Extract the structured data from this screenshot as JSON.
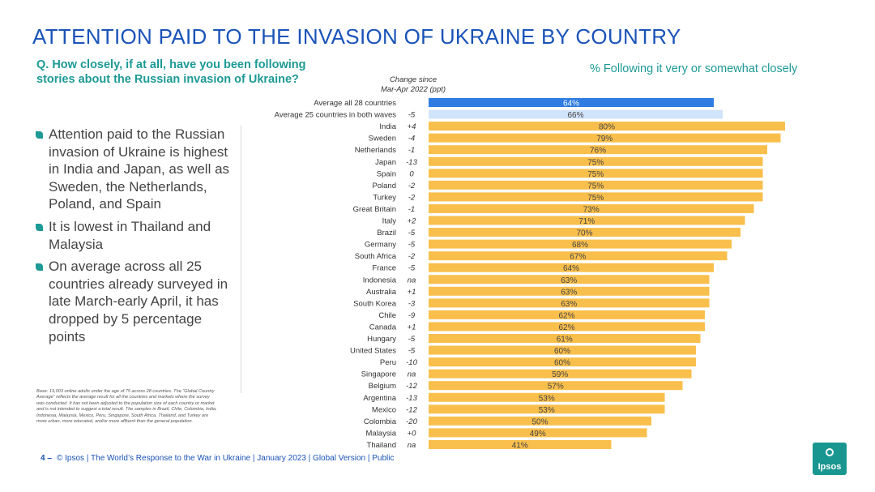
{
  "slide": {
    "title": "ATTENTION PAID TO THE INVASION OF UKRAINE BY COUNTRY",
    "question": "Q. How closely, if at all, have you been following stories about the Russian invasion of Ukraine?",
    "metric_label": "% Following it very or somewhat closely",
    "change_header_line1": "Change since",
    "change_header_line2": "Mar-Apr 2022 (ppt)"
  },
  "bullets": [
    "Attention paid to the Russian invasion of Ukraine is highest in India and Japan, as well as Sweden, the Netherlands, Poland, and Spain",
    "It is lowest in Thailand and Malaysia",
    "On average across all 25 countries already surveyed in late March-early April, it has dropped by 5 percentage points"
  ],
  "footnote": "Base: 19,003 online adults under the age of 75 across 28 countries. The “Global Country Average” reflects the average result for all the countries and markets where the survey was conducted. It has not been adjusted to the population size of each country or market and is not intended to suggest a total result. The samples in Brazil, Chile, Colombia, India, Indonesia, Malaysia, Mexico, Peru, Singapore, South Africa, Thailand, and Turkey are more urban, more educated, and/or more affluent than the general population.",
  "footer": {
    "page_number": "4 –",
    "text": "© Ipsos | The World’s Response to the War in Ukraine | January 2023 | Global Version | Public"
  },
  "logo": {
    "text": "Ipsos"
  },
  "colors": {
    "title": "#1a53b8",
    "teal": "#1d9a96",
    "bar_default": "#f9bf4c",
    "bar_avg_all": "#2f7de2",
    "bar_avg_25": "#d2e4fb"
  },
  "chart_data": {
    "type": "bar",
    "orientation": "horizontal",
    "title": "% Following it very or somewhat closely",
    "xlim": [
      0,
      100
    ],
    "grid": false,
    "categories": [
      "Average all 28 countries",
      "Average 25 countries in both waves",
      "India",
      "Sweden",
      "Netherlands",
      "Japan",
      "Spain",
      "Poland",
      "Turkey",
      "Great Britain",
      "Italy",
      "Brazil",
      "Germany",
      "South Africa",
      "France",
      "Indonesia",
      "Australia",
      "South Korea",
      "Chile",
      "Canada",
      "Hungary",
      "United States",
      "Peru",
      "Singapore",
      "Belgium",
      "Argentina",
      "Mexico",
      "Colombia",
      "Malaysia",
      "Thailand"
    ],
    "values": [
      64,
      66,
      80,
      79,
      76,
      75,
      75,
      75,
      75,
      73,
      71,
      70,
      68,
      67,
      64,
      63,
      63,
      63,
      62,
      62,
      61,
      60,
      60,
      59,
      57,
      53,
      53,
      50,
      49,
      41
    ],
    "labels": [
      "64%",
      "66%",
      "80%",
      "79%",
      "76%",
      "75%",
      "75%",
      "75%",
      "75%",
      "73%",
      "71%",
      "70%",
      "68%",
      "67%",
      "64%",
      "63%",
      "63%",
      "63%",
      "62%",
      "62%",
      "61%",
      "60%",
      "60%",
      "59%",
      "57%",
      "53%",
      "53%",
      "50%",
      "49%",
      "41%"
    ],
    "change_since_mar_apr_2022": [
      "",
      "-5",
      "+4",
      "-4",
      "-1",
      "-13",
      "0",
      "-2",
      "-2",
      "-1",
      "+2",
      "-5",
      "-5",
      "-2",
      "-5",
      "na",
      "+1",
      "-3",
      "-9",
      "+1",
      "-5",
      "-5",
      "-10",
      "na",
      "-12",
      "-13",
      "-12",
      "-20",
      "+0",
      "na"
    ],
    "bar_styles": [
      "avg_all",
      "avg_25",
      "default",
      "default",
      "default",
      "default",
      "default",
      "default",
      "default",
      "default",
      "default",
      "default",
      "default",
      "default",
      "default",
      "default",
      "default",
      "default",
      "default",
      "default",
      "default",
      "default",
      "default",
      "default",
      "default",
      "default",
      "default",
      "default",
      "default",
      "default"
    ]
  }
}
